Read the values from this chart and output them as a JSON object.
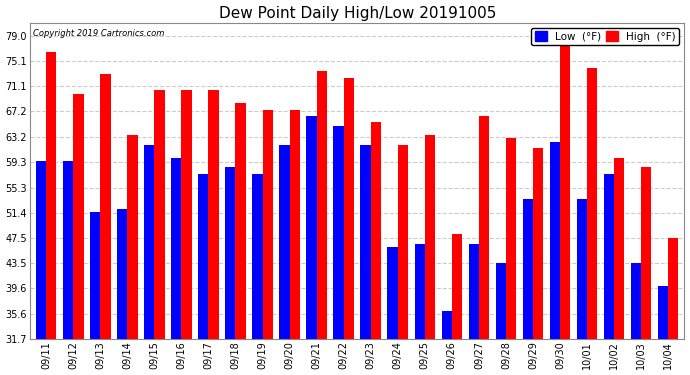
{
  "title": "Dew Point Daily High/Low 20191005",
  "copyright": "Copyright 2019 Cartronics.com",
  "dates": [
    "09/11",
    "09/12",
    "09/13",
    "09/14",
    "09/15",
    "09/16",
    "09/17",
    "09/18",
    "09/19",
    "09/20",
    "09/21",
    "09/22",
    "09/23",
    "09/24",
    "09/25",
    "09/26",
    "09/27",
    "09/28",
    "09/29",
    "09/30",
    "10/01",
    "10/02",
    "10/03",
    "10/04"
  ],
  "high": [
    76.5,
    70.0,
    73.0,
    63.5,
    70.5,
    70.5,
    70.5,
    68.5,
    67.5,
    67.5,
    73.5,
    72.5,
    65.5,
    62.0,
    63.5,
    48.0,
    66.5,
    63.0,
    61.5,
    79.5,
    74.0,
    60.0,
    58.5,
    47.5
  ],
  "low": [
    59.5,
    59.5,
    51.5,
    52.0,
    62.0,
    60.0,
    57.5,
    58.5,
    57.5,
    62.0,
    66.5,
    65.0,
    62.0,
    46.0,
    46.5,
    36.0,
    46.5,
    43.5,
    53.5,
    62.5,
    53.5,
    57.5,
    43.5,
    40.0
  ],
  "high_color": "#ff0000",
  "low_color": "#0000ff",
  "bg_color": "#ffffff",
  "plot_bg_color": "#ffffff",
  "grid_color": "#cccccc",
  "yticks": [
    31.7,
    35.6,
    39.6,
    43.5,
    47.5,
    51.4,
    55.3,
    59.3,
    63.2,
    67.2,
    71.1,
    75.1,
    79.0
  ],
  "ymin": 31.7,
  "ymax": 81.0,
  "bar_width": 0.38,
  "title_fontsize": 11,
  "tick_fontsize": 7,
  "legend_fontsize": 7.5
}
